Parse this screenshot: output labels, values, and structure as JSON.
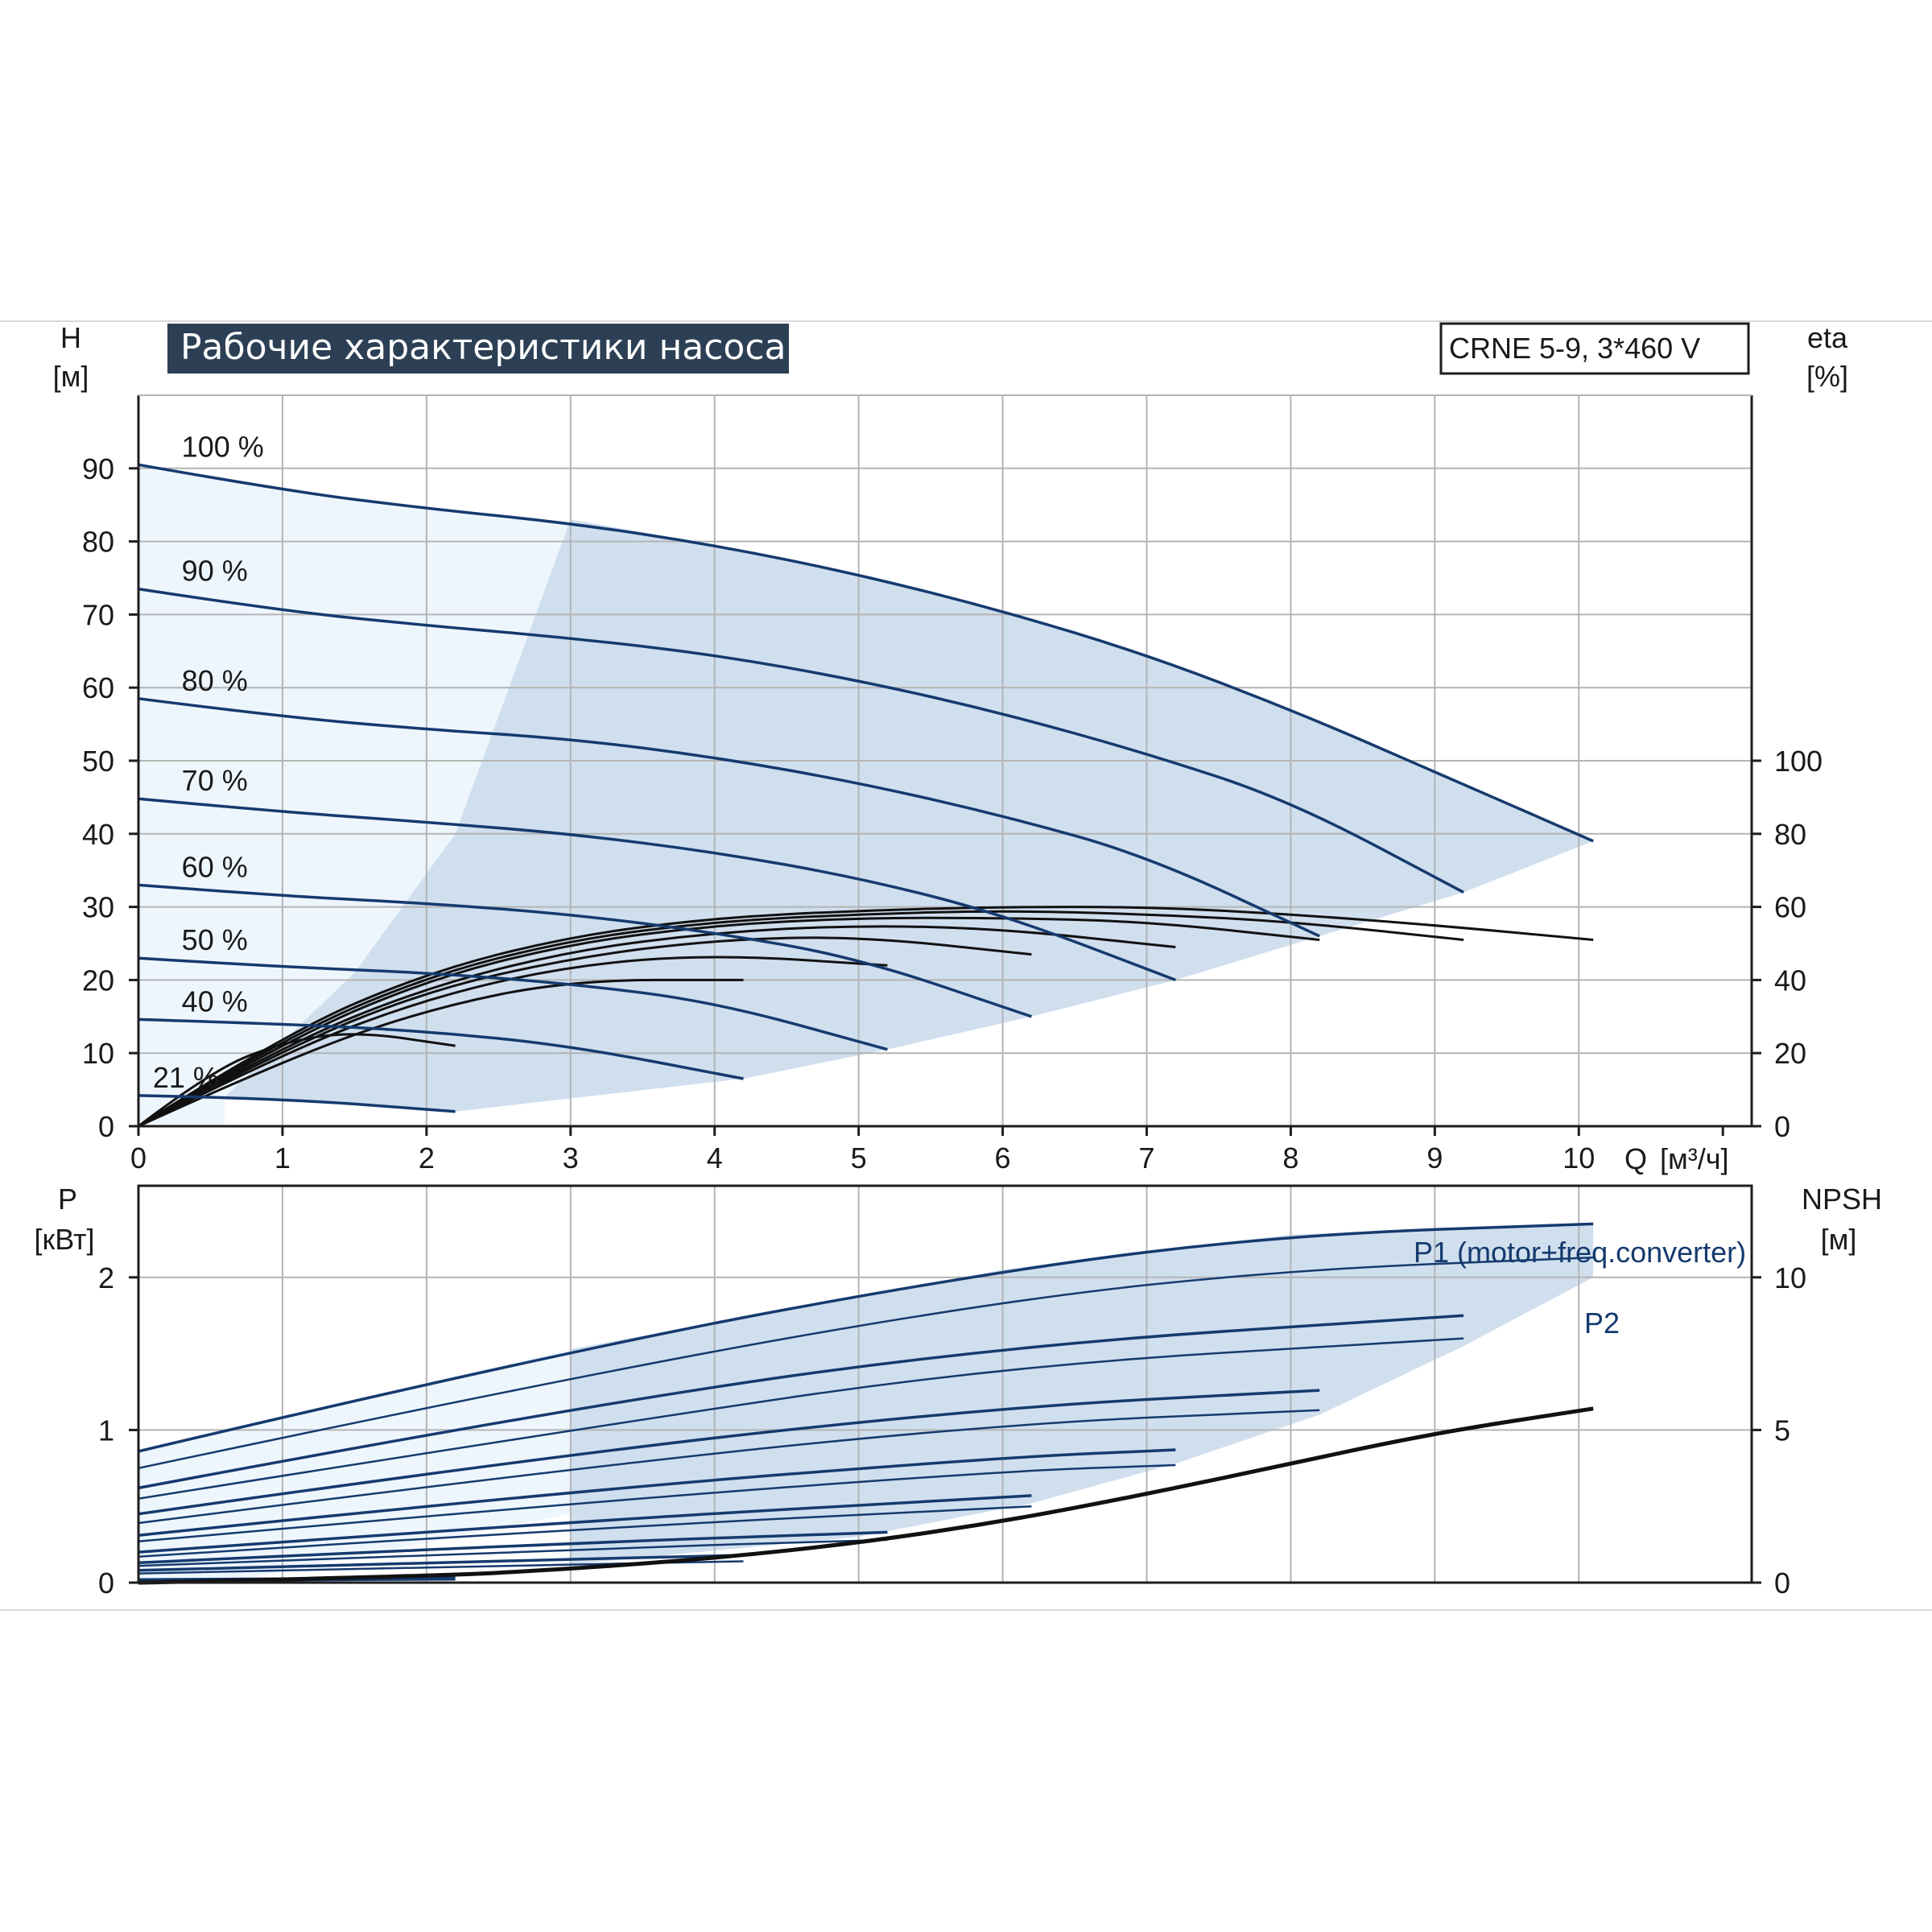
{
  "title": "Рабочие характеристики насоса",
  "model": "CRNE 5-9, 3*460 V",
  "colors": {
    "blue": "#153a6e",
    "black": "#111111",
    "band": "#d0dfee",
    "light_band": "#eef6fd",
    "title_bg": "#2c3f55"
  },
  "chart_data": [
    {
      "type": "line",
      "name": "head",
      "x_axis": {
        "label": "Q",
        "unit": "[м³/ч]",
        "range": [
          0,
          11.2
        ],
        "ticks": [
          0,
          1,
          2,
          3,
          4,
          5,
          6,
          7,
          8,
          9,
          10
        ]
      },
      "y_axis_left": {
        "label": "H",
        "unit": "[м]",
        "range": [
          0,
          100
        ],
        "ticks": [
          0,
          10,
          20,
          30,
          40,
          50,
          60,
          70,
          80,
          90
        ]
      },
      "y_axis_right": {
        "label": "eta",
        "unit": "[%]",
        "range": [
          0,
          200
        ],
        "ticks": [
          0,
          20,
          40,
          60,
          80,
          100
        ]
      },
      "speed_labels": [
        "100 %",
        "90 %",
        "80 %",
        "70 %",
        "60 %",
        "50 %",
        "40 %",
        "21 %"
      ],
      "operating_area": {
        "left_edge": [
          [
            0.6,
            4
          ],
          [
            1.5,
            21
          ],
          [
            2.2,
            40
          ],
          [
            3.0,
            83
          ]
        ],
        "right_edge": [
          [
            2.2,
            2
          ],
          [
            4.2,
            6.5
          ],
          [
            5.2,
            10.5
          ],
          [
            6.2,
            15
          ],
          [
            7.2,
            20
          ],
          [
            8.2,
            26
          ],
          [
            9.2,
            32
          ],
          [
            10.1,
            39
          ]
        ]
      },
      "head_curves": [
        {
          "speed": "100 %",
          "points": [
            [
              0,
              90.5
            ],
            [
              1,
              87
            ],
            [
              2,
              84.5
            ],
            [
              3,
              82.5
            ],
            [
              4,
              79.5
            ],
            [
              5,
              75.5
            ],
            [
              6,
              70.5
            ],
            [
              7,
              64.5
            ],
            [
              8,
              57
            ],
            [
              9,
              48.5
            ],
            [
              10.1,
              39
            ]
          ]
        },
        {
          "speed": "90 %",
          "points": [
            [
              0,
              73.5
            ],
            [
              1,
              70.5
            ],
            [
              2,
              68.5
            ],
            [
              3,
              66.8
            ],
            [
              4,
              64.5
            ],
            [
              5,
              61
            ],
            [
              6,
              56.5
            ],
            [
              7,
              51
            ],
            [
              8,
              44.5
            ],
            [
              9.2,
              32
            ]
          ]
        },
        {
          "speed": "80 %",
          "points": [
            [
              0,
              58.5
            ],
            [
              1,
              56
            ],
            [
              2,
              54.3
            ],
            [
              3,
              53
            ],
            [
              4,
              50.5
            ],
            [
              5,
              47
            ],
            [
              6,
              42.5
            ],
            [
              7,
              37
            ],
            [
              8.2,
              26
            ]
          ]
        },
        {
          "speed": "70 %",
          "points": [
            [
              0,
              44.8
            ],
            [
              1,
              43
            ],
            [
              2,
              41.6
            ],
            [
              3,
              40
            ],
            [
              4,
              37.5
            ],
            [
              5,
              34
            ],
            [
              6,
              29
            ],
            [
              7.2,
              20
            ]
          ]
        },
        {
          "speed": "60 %",
          "points": [
            [
              0,
              33
            ],
            [
              1,
              31.5
            ],
            [
              2,
              30.5
            ],
            [
              3,
              29
            ],
            [
              4,
              26.5
            ],
            [
              5,
              23
            ],
            [
              6.2,
              15
            ]
          ]
        },
        {
          "speed": "50 %",
          "points": [
            [
              0,
              23
            ],
            [
              1,
              21.8
            ],
            [
              2,
              21
            ],
            [
              3,
              19.5
            ],
            [
              4,
              17
            ],
            [
              5.2,
              10.5
            ]
          ]
        },
        {
          "speed": "40 %",
          "points": [
            [
              0,
              14.6
            ],
            [
              1,
              14
            ],
            [
              2,
              13
            ],
            [
              3,
              11
            ],
            [
              4.2,
              6.5
            ]
          ]
        },
        {
          "speed": "21 %",
          "points": [
            [
              0,
              4.2
            ],
            [
              1,
              3.8
            ],
            [
              2.2,
              2
            ]
          ]
        }
      ],
      "efficiency_curves": [
        {
          "speed": "100 %",
          "points": [
            [
              0,
              0
            ],
            [
              1,
              25
            ],
            [
              2,
              42
            ],
            [
              3,
              52
            ],
            [
              4,
              57
            ],
            [
              5,
              59
            ],
            [
              6,
              60
            ],
            [
              7,
              60
            ],
            [
              8,
              58
            ],
            [
              9,
              55
            ],
            [
              10.1,
              51
            ]
          ]
        },
        {
          "speed": "90 %",
          "points": [
            [
              0,
              0
            ],
            [
              1,
              24
            ],
            [
              2,
              41
            ],
            [
              3,
              51
            ],
            [
              4,
              56
            ],
            [
              5,
              58
            ],
            [
              6,
              59
            ],
            [
              7,
              58
            ],
            [
              8,
              56
            ],
            [
              9.2,
              51
            ]
          ]
        },
        {
          "speed": "80 %",
          "points": [
            [
              0,
              0
            ],
            [
              1,
              23
            ],
            [
              2,
              40
            ],
            [
              3,
              50
            ],
            [
              4,
              55
            ],
            [
              5,
              57
            ],
            [
              6,
              57
            ],
            [
              7,
              56
            ],
            [
              8.2,
              51
            ]
          ]
        },
        {
          "speed": "70 %",
          "points": [
            [
              0,
              0
            ],
            [
              1,
              22
            ],
            [
              2,
              38
            ],
            [
              3,
              48
            ],
            [
              4,
              53
            ],
            [
              5,
              55
            ],
            [
              6,
              54
            ],
            [
              7.2,
              49
            ]
          ]
        },
        {
          "speed": "60 %",
          "points": [
            [
              0,
              0
            ],
            [
              1,
              21
            ],
            [
              2,
              37
            ],
            [
              3,
              46
            ],
            [
              4,
              51
            ],
            [
              5,
              52
            ],
            [
              6.2,
              47
            ]
          ]
        },
        {
          "speed": "50 %",
          "points": [
            [
              0,
              0
            ],
            [
              1,
              20
            ],
            [
              2,
              35
            ],
            [
              3,
              44
            ],
            [
              4,
              47
            ],
            [
              5.2,
              44
            ]
          ]
        },
        {
          "speed": "40 %",
          "points": [
            [
              0,
              0
            ],
            [
              1,
              18
            ],
            [
              2,
              32
            ],
            [
              3,
              40
            ],
            [
              4.2,
              40
            ]
          ]
        },
        {
          "speed": "21 %",
          "points": [
            [
              0,
              0
            ],
            [
              0.5,
              15
            ],
            [
              1,
              23
            ],
            [
              1.5,
              26
            ],
            [
              2.2,
              22
            ]
          ]
        }
      ]
    },
    {
      "type": "line",
      "name": "power",
      "x_axis": {
        "label": "Q",
        "unit": "[м³/ч]",
        "range": [
          0,
          11.2
        ]
      },
      "y_axis_left": {
        "label": "P",
        "unit": "[кВт]",
        "range": [
          0,
          2.6
        ],
        "ticks": [
          0,
          1,
          2
        ]
      },
      "y_axis_right": {
        "label": "NPSH",
        "unit": "[м]",
        "range": [
          0,
          13
        ],
        "ticks": [
          0,
          5,
          10
        ]
      },
      "series_labels": {
        "p1": "P1 (motor+freq.converter)",
        "p2": "P2"
      },
      "p1_curves": [
        {
          "speed": "100 %",
          "points": [
            [
              0,
              0.86
            ],
            [
              3,
              1.53
            ],
            [
              6,
              2.05
            ],
            [
              8,
              2.28
            ],
            [
              10.1,
              2.35
            ]
          ]
        },
        {
          "speed": "90 %",
          "points": [
            [
              0,
              0.62
            ],
            [
              3,
              1.15
            ],
            [
              6,
              1.55
            ],
            [
              9.2,
              1.75
            ]
          ]
        },
        {
          "speed": "80 %",
          "points": [
            [
              0,
              0.45
            ],
            [
              3,
              0.85
            ],
            [
              6,
              1.15
            ],
            [
              8.2,
              1.26
            ]
          ]
        },
        {
          "speed": "70 %",
          "points": [
            [
              0,
              0.31
            ],
            [
              3,
              0.6
            ],
            [
              6,
              0.82
            ],
            [
              7.2,
              0.87
            ]
          ]
        },
        {
          "speed": "60 %",
          "points": [
            [
              0,
              0.2
            ],
            [
              3,
              0.4
            ],
            [
              6.2,
              0.57
            ]
          ]
        },
        {
          "speed": "50 %",
          "points": [
            [
              0,
              0.13
            ],
            [
              3,
              0.26
            ],
            [
              5.2,
              0.33
            ]
          ]
        },
        {
          "speed": "40 %",
          "points": [
            [
              0,
              0.08
            ],
            [
              2,
              0.13
            ],
            [
              4.2,
              0.18
            ]
          ]
        },
        {
          "speed": "21 %",
          "points": [
            [
              0,
              0.02
            ],
            [
              2.2,
              0.03
            ]
          ]
        }
      ],
      "p2_curves": [
        {
          "speed": "100 %",
          "points": [
            [
              0,
              0.75
            ],
            [
              3,
              1.35
            ],
            [
              6,
              1.85
            ],
            [
              8,
              2.05
            ],
            [
              10.1,
              2.13
            ]
          ]
        },
        {
          "speed": "90 %",
          "points": [
            [
              0,
              0.55
            ],
            [
              3,
              1.0
            ],
            [
              6,
              1.42
            ],
            [
              9.2,
              1.6
            ]
          ]
        },
        {
          "speed": "80 %",
          "points": [
            [
              0,
              0.39
            ],
            [
              3,
              0.75
            ],
            [
              6,
              1.04
            ],
            [
              8.2,
              1.13
            ]
          ]
        },
        {
          "speed": "70 %",
          "points": [
            [
              0,
              0.27
            ],
            [
              3,
              0.52
            ],
            [
              6,
              0.73
            ],
            [
              7.2,
              0.77
            ]
          ]
        },
        {
          "speed": "60 %",
          "points": [
            [
              0,
              0.17
            ],
            [
              3,
              0.35
            ],
            [
              6.2,
              0.5
            ]
          ]
        },
        {
          "speed": "50 %",
          "points": [
            [
              0,
              0.11
            ],
            [
              3,
              0.22
            ],
            [
              5.2,
              0.28
            ]
          ]
        },
        {
          "speed": "40 %",
          "points": [
            [
              0,
              0.06
            ],
            [
              2,
              0.1
            ],
            [
              4.2,
              0.14
            ]
          ]
        },
        {
          "speed": "21 %",
          "points": [
            [
              0,
              0.01
            ],
            [
              2.2,
              0.02
            ]
          ]
        }
      ],
      "npsh_curve": {
        "points": [
          [
            0,
            0
          ],
          [
            2,
            0.2
          ],
          [
            3,
            0.45
          ],
          [
            4,
            0.8
          ],
          [
            5,
            1.3
          ],
          [
            6,
            2.0
          ],
          [
            7,
            2.9
          ],
          [
            8,
            3.9
          ],
          [
            9,
            4.9
          ],
          [
            10.1,
            5.7
          ]
        ]
      }
    }
  ]
}
